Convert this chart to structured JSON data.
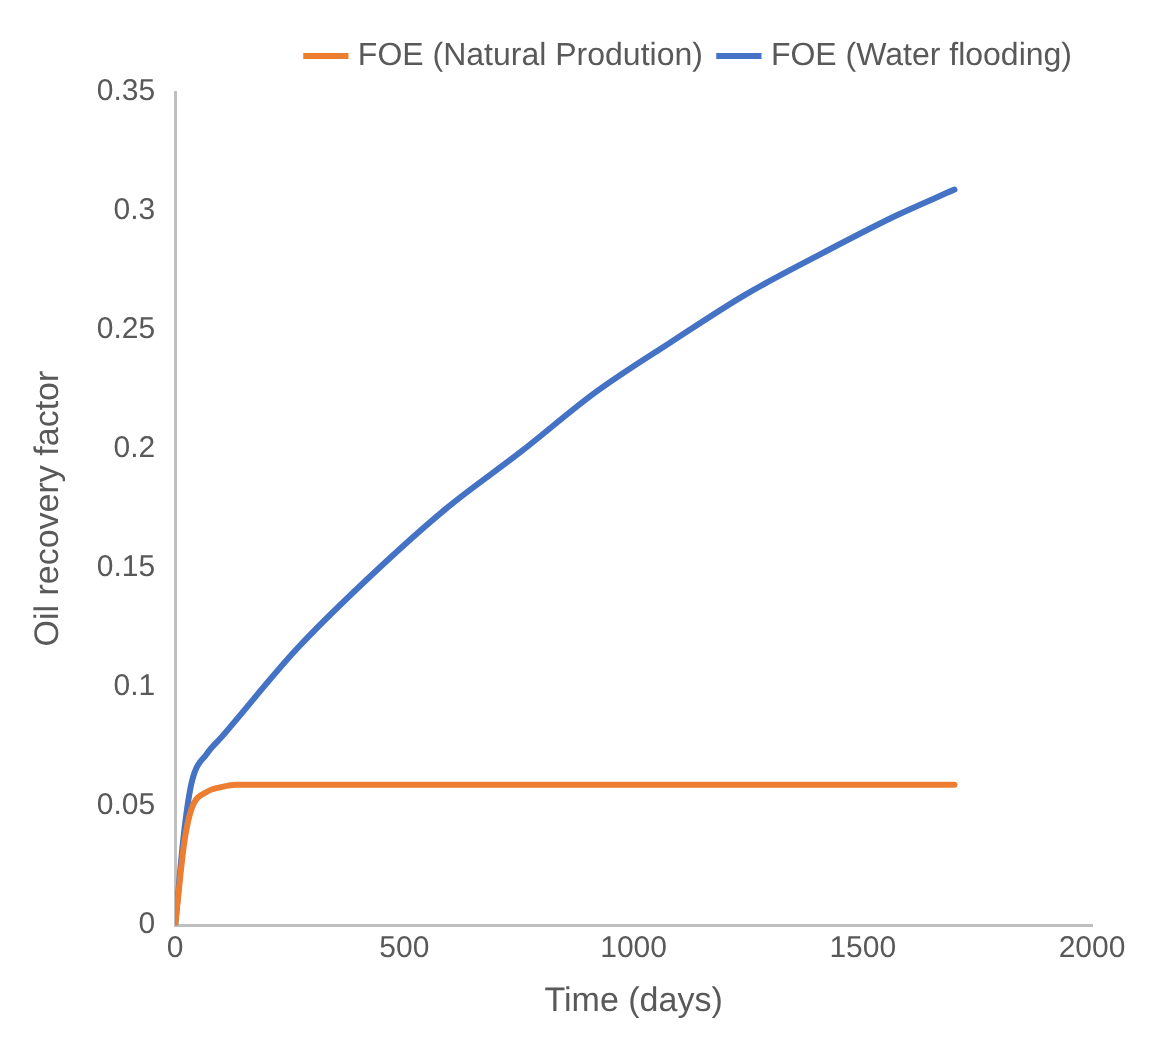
{
  "chart_data": {
    "type": "line",
    "xlabel": "Time (days)",
    "ylabel": "Oil recovery factor",
    "xlim": [
      0,
      2000
    ],
    "xticks": [
      0,
      500,
      1000,
      1500,
      2000
    ],
    "ylim": [
      0,
      0.35
    ],
    "yticks": [
      0,
      0.05,
      0.1,
      0.15,
      0.2,
      0.25,
      0.3,
      0.35
    ],
    "grid": false,
    "legend": "top right",
    "marker": "none",
    "line_style": "solid",
    "series": [
      {
        "name": "FOE (Natural Prodution)",
        "color": "#ed7d31",
        "x": [
          0,
          20,
          36,
          69,
          100,
          134,
          300,
          600,
          1000,
          1400,
          1700
        ],
        "values": [
          0,
          0.035,
          0.049,
          0.056,
          0.058,
          0.059,
          0.059,
          0.059,
          0.059,
          0.059,
          0.059
        ]
      },
      {
        "name": "FOE (Water flooding)",
        "color": "#4472c4",
        "x": [
          0,
          20,
          36,
          69,
          101,
          265,
          428,
          591,
          755,
          918,
          1082,
          1245,
          1409,
          1572,
          1700
        ],
        "values": [
          0,
          0.04,
          0.06,
          0.072,
          0.079,
          0.116,
          0.147,
          0.175,
          0.199,
          0.224,
          0.245,
          0.265,
          0.282,
          0.298,
          0.309
        ]
      }
    ]
  }
}
